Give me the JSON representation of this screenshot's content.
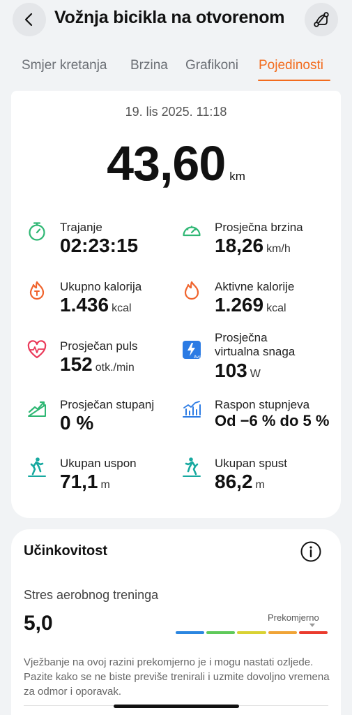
{
  "header": {
    "title": "Vožnja bicikla na otvorenom",
    "back_icon": "chevron-left-icon",
    "route_icon": "route-icon"
  },
  "tabs": [
    {
      "label": "Smjer kretanja",
      "active": false
    },
    {
      "label": "Brzina",
      "active": false
    },
    {
      "label": "Grafikoni",
      "active": false
    },
    {
      "label": "Pojedinosti",
      "active": true
    }
  ],
  "summary": {
    "date": "19. lis 2025. 11:18",
    "distance": "43,60",
    "distance_unit": "km"
  },
  "stats": [
    {
      "label": "Trajanje",
      "value": "02:23:15",
      "unit": "",
      "icon": "stopwatch-icon",
      "color": "#2fb774"
    },
    {
      "label": "Prosječna brzina",
      "value": "18,26",
      "unit": "km/h",
      "icon": "speedometer-icon",
      "color": "#2fb774"
    },
    {
      "label": "Ukupno kalorija",
      "value": "1.436",
      "unit": "kcal",
      "icon": "flame-total-icon",
      "color": "#f0642d"
    },
    {
      "label": "Aktivne kalorije",
      "value": "1.269",
      "unit": "kcal",
      "icon": "flame-icon",
      "color": "#f0642d"
    },
    {
      "label": "Prosječan puls",
      "value": "152",
      "unit": "otk./min",
      "icon": "heart-rate-icon",
      "color": "#ea3a5a"
    },
    {
      "label": "Prosječna virtualna snaga",
      "label_line1": "Prosječna",
      "label_line2": "virtualna snaga",
      "value": "103",
      "unit": "W",
      "icon": "power-avg-icon",
      "color": "#2b7be4"
    },
    {
      "label": "Prosječan stupanj",
      "value": "0 %",
      "unit": "",
      "icon": "incline-icon",
      "color": "#2fb774"
    },
    {
      "label": "Raspon stupnjeva",
      "value": "Od −6 % do 5 %",
      "unit": "",
      "icon": "grade-range-icon",
      "color": "#2b7be4"
    },
    {
      "label": "Ukupan uspon",
      "value": "71,1",
      "unit": "m",
      "icon": "hiker-ascent-icon",
      "color": "#17a9a0"
    },
    {
      "label": "Ukupan spust",
      "value": "86,2",
      "unit": "m",
      "icon": "hiker-descent-icon",
      "color": "#17a9a0"
    }
  ],
  "performance": {
    "title": "Učinkovitost",
    "info_icon": "info-icon",
    "subtitle": "Stres aerobnog treninga",
    "value": "5,0",
    "level_label": "Prekomjerno",
    "level_fraction": 0.9,
    "scale_colors": [
      "#2b86e0",
      "#5fc95a",
      "#d9d233",
      "#f0a437",
      "#ea3b2e"
    ],
    "description": "Vježbanje na ovoj razini prekomjerno je i mogu nastati ozljede. Pazite kako se ne biste previše trenirali i uzmite dovoljno vremena za odmor i oporavak."
  }
}
